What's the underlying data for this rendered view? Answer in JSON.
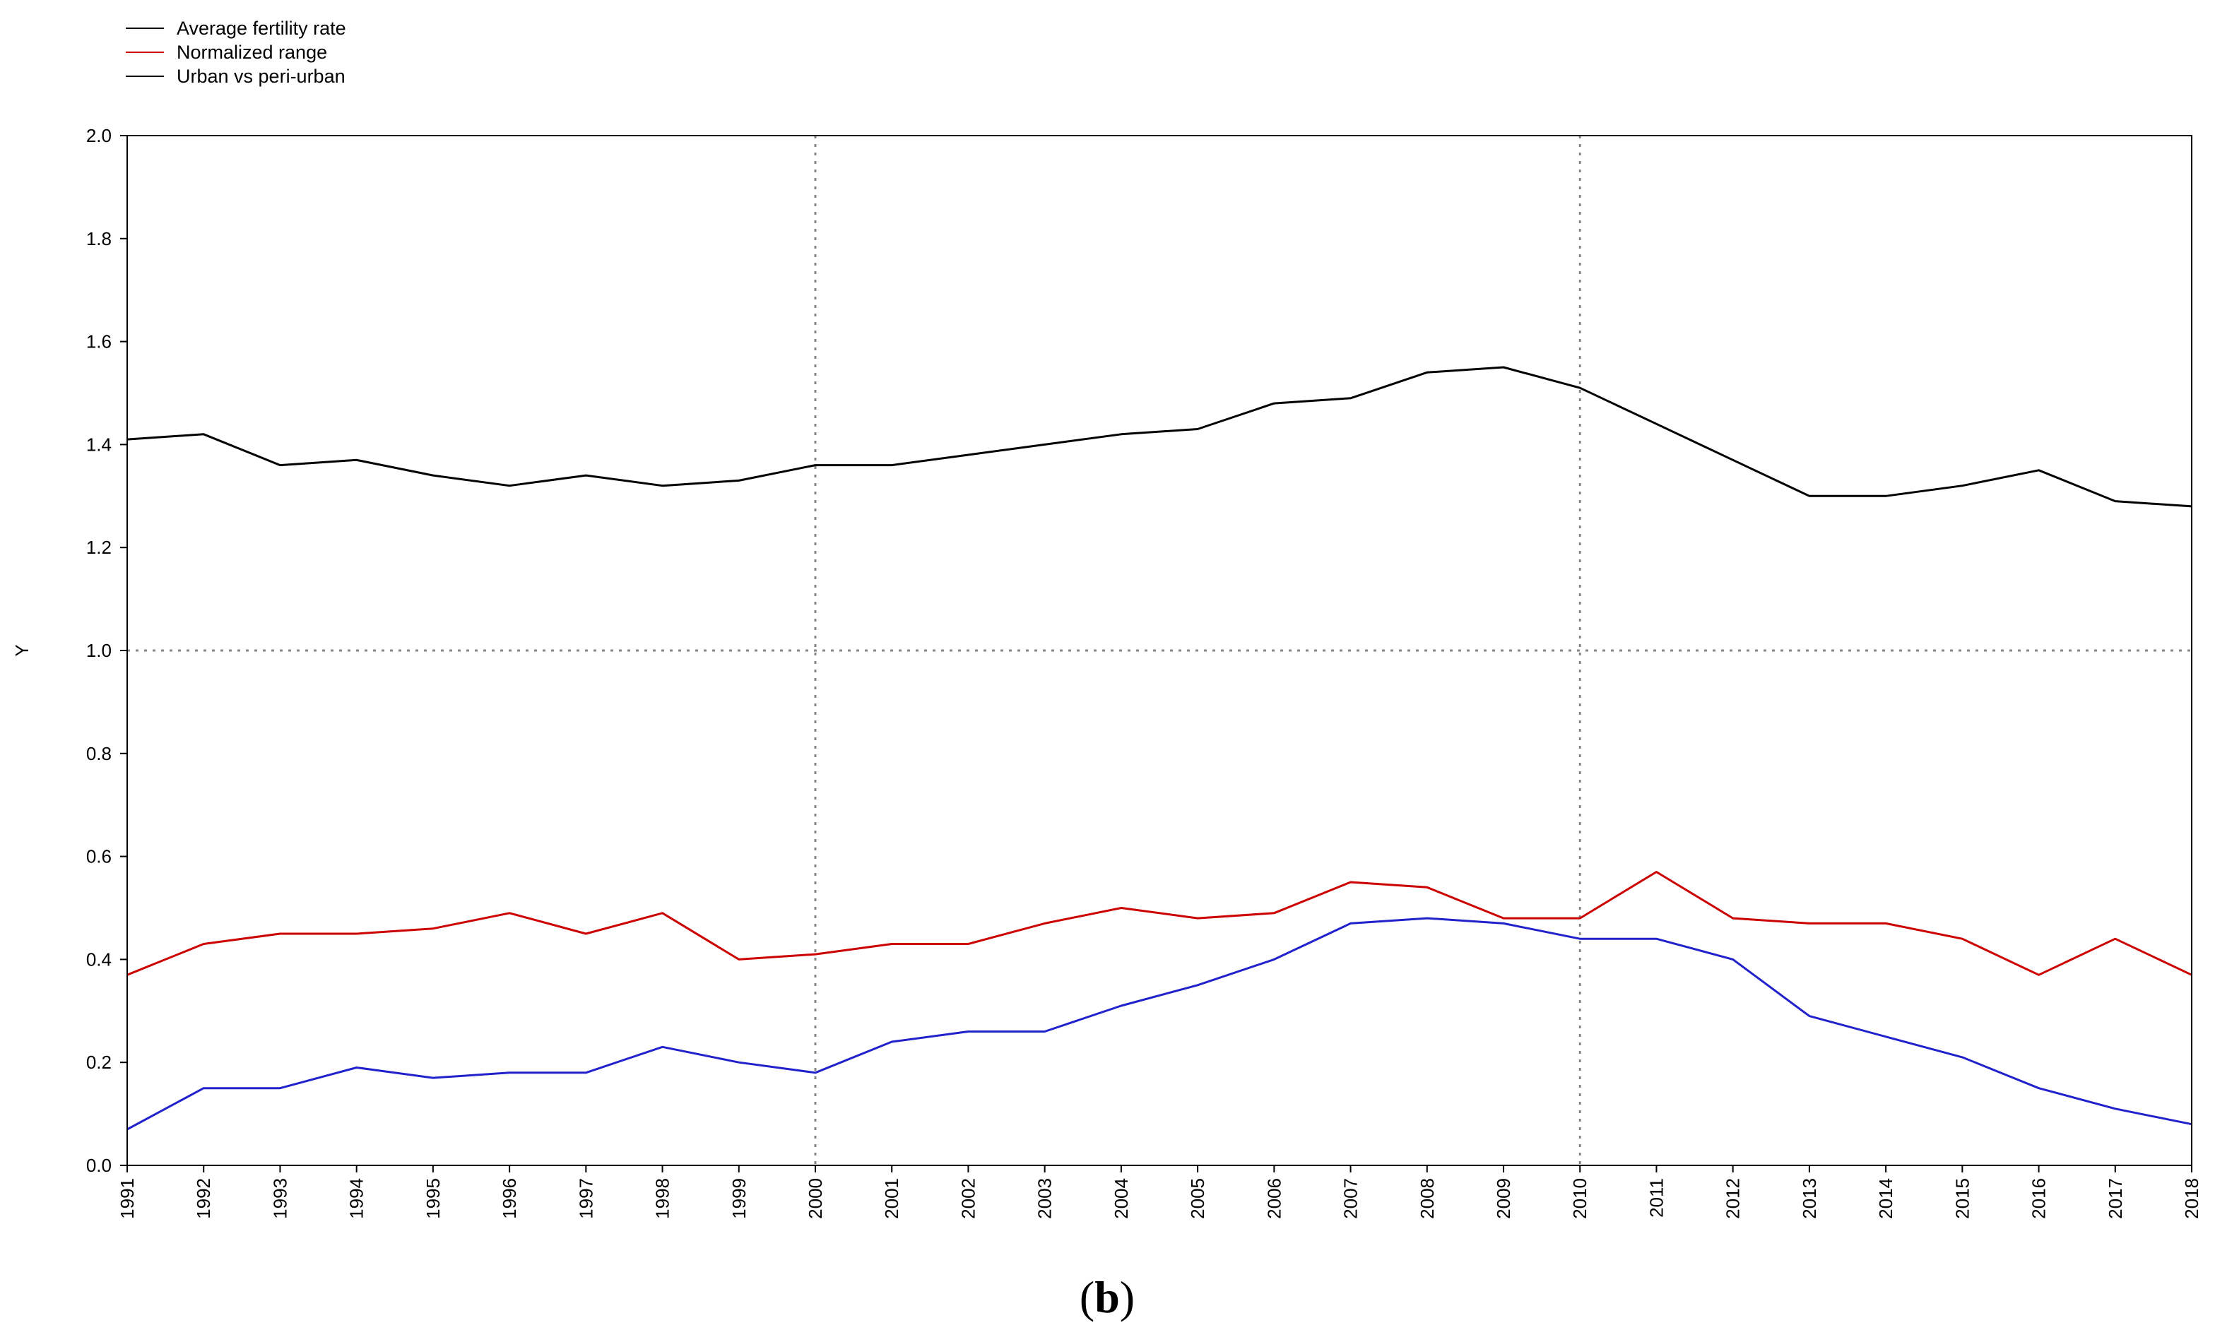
{
  "chart_data": {
    "type": "line",
    "caption": "(b)",
    "ylabel": "Y",
    "xlabel": "",
    "ylim": [
      0,
      2
    ],
    "yticks": [
      "0.0",
      "0.2",
      "0.4",
      "0.6",
      "0.8",
      "1.0",
      "1.2",
      "1.4",
      "1.6",
      "1.8",
      "2.0"
    ],
    "x": [
      "1991",
      "1992",
      "1993",
      "1994",
      "1995",
      "1996",
      "1997",
      "1998",
      "1999",
      "2000",
      "2001",
      "2002",
      "2003",
      "2004",
      "2005",
      "2006",
      "2007",
      "2008",
      "2009",
      "2010",
      "2011",
      "2012",
      "2013",
      "2014",
      "2015",
      "2016",
      "2017",
      "2018"
    ],
    "grid": "dotted reference lines at x=2000, x=2010 and y=1.0",
    "reference_lines": {
      "x": [
        "2000",
        "2010"
      ],
      "y": [
        1.0
      ]
    },
    "legend_position": "top-left",
    "series": [
      {
        "name": "Average fertility rate",
        "color": "#000000",
        "values": [
          1.41,
          1.42,
          1.36,
          1.37,
          1.34,
          1.32,
          1.34,
          1.32,
          1.33,
          1.36,
          1.36,
          1.38,
          1.4,
          1.42,
          1.43,
          1.48,
          1.49,
          1.54,
          1.55,
          1.51,
          1.44,
          1.37,
          1.3,
          1.3,
          1.32,
          1.35,
          1.29,
          1.28
        ]
      },
      {
        "name": "Normalized range",
        "color": "#cc0000",
        "values": [
          0.37,
          0.43,
          0.45,
          0.45,
          0.46,
          0.49,
          0.45,
          0.49,
          0.4,
          0.41,
          0.43,
          0.43,
          0.47,
          0.5,
          0.48,
          0.49,
          0.55,
          0.54,
          0.48,
          0.48,
          0.57,
          0.48,
          0.47,
          0.47,
          0.44,
          0.37,
          0.44,
          0.37
        ]
      },
      {
        "name": "Urban vs peri-urban",
        "color": "#2222cc",
        "values": [
          0.07,
          0.15,
          0.15,
          0.19,
          0.17,
          0.18,
          0.18,
          0.23,
          0.2,
          0.18,
          0.24,
          0.26,
          0.26,
          0.31,
          0.35,
          0.4,
          0.47,
          0.48,
          0.47,
          0.44,
          0.44,
          0.4,
          0.29,
          0.25,
          0.21,
          0.15,
          0.11,
          0.08
        ]
      }
    ],
    "legend_line_colors": [
      "#000000",
      "#cc0000",
      "#000000"
    ]
  }
}
